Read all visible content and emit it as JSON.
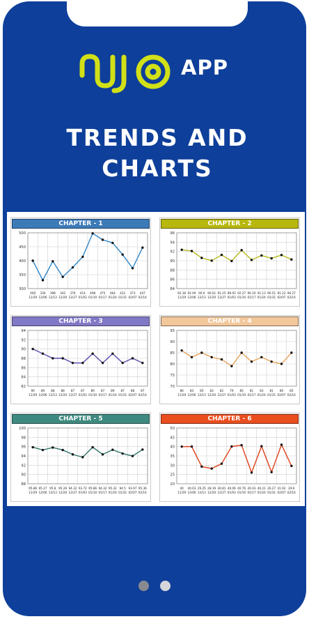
{
  "brand": {
    "logo_text": "NJO",
    "app_label": "APP",
    "accent_color": "#d2e017",
    "background_color": "#0e3f9a"
  },
  "headline": {
    "line1": "TRENDS AND",
    "line2": "CHARTS"
  },
  "pager": {
    "count": 2,
    "active_index": 0
  },
  "chart_data": [
    {
      "type": "line",
      "title": "CHAPTER - 1",
      "header_color": "#3d7ab8",
      "line_color": "#2f86c8",
      "ylim": [
        300,
        500
      ],
      "yticks": [
        "500",
        "450",
        "400",
        "350",
        "300"
      ],
      "ytick_values": [
        500,
        450,
        400,
        350,
        300
      ],
      "categories": [
        "11/29",
        "12/06",
        "12/13",
        "12/20",
        "12/27",
        "01/03",
        "01/10",
        "01/17",
        "01/24",
        "01/31",
        "02/07",
        "02/14"
      ],
      "value_labels": [
        "400",
        "330",
        "398",
        "342",
        "376",
        "414",
        "498",
        "475",
        "464",
        "422",
        "373",
        "447"
      ],
      "values": [
        400,
        330,
        398,
        342,
        376,
        414,
        498,
        475,
        464,
        422,
        373,
        447
      ],
      "grid": true
    },
    {
      "type": "line",
      "title": "CHAPTER - 2",
      "header_color": "#b7b70e",
      "line_color": "#b8b81c",
      "ylim": [
        84,
        96
      ],
      "yticks": [
        "96",
        "94",
        "92",
        "90",
        "88",
        "86",
        "84"
      ],
      "ytick_values": [
        96,
        94,
        92,
        90,
        88,
        86,
        84
      ],
      "categories": [
        "11/29",
        "12/06",
        "12/13",
        "12/20",
        "12/27",
        "01/03",
        "01/10",
        "01/17",
        "01/24",
        "01/31",
        "02/07",
        "02/14"
      ],
      "value_labels": [
        "92.36",
        "92.09",
        "90.6",
        "90.01",
        "91.25",
        "89.93",
        "92.27",
        "90.16",
        "91.13",
        "90.51",
        "91.22",
        "90.27"
      ],
      "values": [
        92.36,
        92.09,
        90.6,
        90.01,
        91.25,
        89.93,
        92.27,
        90.16,
        91.13,
        90.51,
        91.22,
        90.27
      ],
      "grid": true
    },
    {
      "type": "line",
      "title": "CHAPTER - 3",
      "header_color": "#8179c6",
      "line_color": "#5a4fae",
      "ylim": [
        82,
        94
      ],
      "yticks": [
        "94",
        "92",
        "90",
        "88",
        "86",
        "84",
        "82"
      ],
      "ytick_values": [
        94,
        92,
        90,
        88,
        86,
        84,
        82
      ],
      "categories": [
        "11/29",
        "12/06",
        "12/13",
        "12/20",
        "12/27",
        "01/03",
        "01/10",
        "01/17",
        "01/24",
        "01/31",
        "02/07",
        "02/14"
      ],
      "value_labels": [
        "90",
        "89",
        "88",
        "88",
        "87",
        "87",
        "89",
        "87",
        "89",
        "87",
        "88",
        "87"
      ],
      "values": [
        90,
        89,
        88,
        88,
        87,
        87,
        89,
        87,
        89,
        87,
        88,
        87
      ],
      "grid": true
    },
    {
      "type": "line",
      "title": "CHAPTER - 4",
      "header_color": "#f2c79a",
      "line_color": "#e8a255",
      "ylim": [
        70,
        95
      ],
      "yticks": [
        "95",
        "90",
        "85",
        "80",
        "75",
        "70"
      ],
      "ytick_values": [
        95,
        90,
        85,
        80,
        75,
        70
      ],
      "categories": [
        "11/29",
        "12/06",
        "12/13",
        "12/20",
        "12/27",
        "01/03",
        "01/10",
        "01/17",
        "01/24",
        "01/31",
        "02/07",
        "02/14"
      ],
      "value_labels": [
        "86",
        "83",
        "85",
        "83",
        "82",
        "79",
        "85",
        "81",
        "83",
        "81",
        "80",
        "85"
      ],
      "values": [
        86,
        83,
        85,
        83,
        82,
        79,
        85,
        81,
        83,
        81,
        80,
        85
      ],
      "grid": true
    },
    {
      "type": "line",
      "title": "CHAPTER - 5",
      "header_color": "#3e8a80",
      "line_color": "#2e7468",
      "ylim": [
        88,
        100
      ],
      "yticks": [
        "100",
        "98",
        "96",
        "94",
        "92",
        "90",
        "88"
      ],
      "ytick_values": [
        100,
        98,
        96,
        94,
        92,
        90,
        88
      ],
      "categories": [
        "11/29",
        "12/06",
        "12/13",
        "12/20",
        "12/27",
        "01/03",
        "01/10",
        "01/17",
        "01/24",
        "01/31",
        "02/07",
        "02/14"
      ],
      "value_labels": [
        "95.86",
        "95.27",
        "95.8",
        "95.26",
        "94.32",
        "93.72",
        "95.86",
        "94.32",
        "95.32",
        "94.5",
        "93.97",
        "95.36"
      ],
      "values": [
        95.86,
        95.27,
        95.8,
        95.26,
        94.32,
        93.72,
        95.86,
        94.32,
        95.32,
        94.5,
        93.97,
        95.36
      ],
      "grid": true
    },
    {
      "type": "line",
      "title": "CHAPTER - 6",
      "header_color": "#ea4e1e",
      "line_color": "#e0401a",
      "ylim": [
        20,
        50
      ],
      "yticks": [
        "50",
        "45",
        "40",
        "35",
        "30",
        "25",
        "20"
      ],
      "ytick_values": [
        50,
        45,
        40,
        35,
        30,
        25,
        20
      ],
      "categories": [
        "11/29",
        "12/06",
        "12/13",
        "12/20",
        "12/27",
        "01/03",
        "01/10",
        "01/17",
        "01/24",
        "01/31",
        "02/07",
        "02/14"
      ],
      "value_labels": [
        "40",
        "40.03",
        "29.25",
        "28.19",
        "30.81",
        "40.06",
        "40.76",
        "26.03",
        "40.21",
        "26.27",
        "41.02",
        "29.6"
      ],
      "values": [
        40,
        40.03,
        29.25,
        28.19,
        30.81,
        40.06,
        40.76,
        26.03,
        40.21,
        26.27,
        41.02,
        29.6
      ],
      "grid": true
    }
  ]
}
